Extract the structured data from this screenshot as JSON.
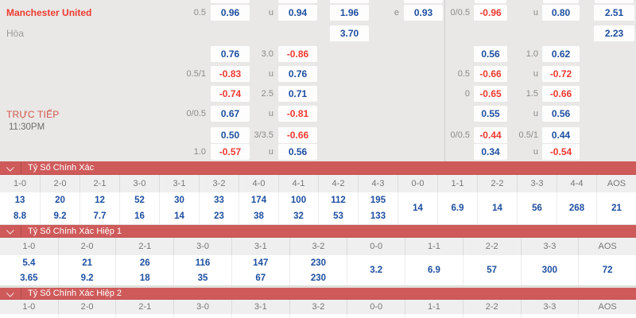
{
  "odds_panel": {
    "live_label": "TRỰC TIẾP",
    "match_time": "11:30PM",
    "rows": [
      {
        "team": "Manchester United",
        "team_style": "home",
        "cells": [
          [
            1,
            "l",
            "0.5"
          ],
          [
            2,
            "b",
            "0.96"
          ],
          [
            3,
            "l",
            "u"
          ],
          [
            4,
            "b",
            "0.94"
          ],
          [
            6,
            "b",
            "1.96"
          ],
          [
            7,
            "l",
            "e"
          ],
          [
            8,
            "b",
            "0.93"
          ],
          [
            10,
            "l",
            "0/0.5"
          ],
          [
            11,
            "b",
            "-0.96"
          ],
          [
            12,
            "l",
            "u"
          ],
          [
            13,
            "b",
            "0.80"
          ],
          [
            15,
            "b",
            "2.51"
          ]
        ]
      },
      {
        "team": "Hòa",
        "team_style": "draw",
        "cells": [
          [
            6,
            "b",
            "3.70"
          ],
          [
            15,
            "b",
            "2.23"
          ]
        ]
      },
      {
        "cells": [
          [
            2,
            "b",
            "0.76"
          ],
          [
            3,
            "l",
            "3.0"
          ],
          [
            4,
            "b",
            "-0.86"
          ],
          [
            11,
            "b",
            "0.56"
          ],
          [
            12,
            "l",
            "1.0"
          ],
          [
            13,
            "b",
            "0.62"
          ]
        ]
      },
      {
        "cells": [
          [
            1,
            "l",
            "0.5/1"
          ],
          [
            2,
            "b",
            "-0.83"
          ],
          [
            3,
            "l",
            "u"
          ],
          [
            4,
            "b",
            "0.76"
          ],
          [
            10,
            "l",
            "0.5"
          ],
          [
            11,
            "b",
            "-0.66"
          ],
          [
            12,
            "l",
            "u"
          ],
          [
            13,
            "b",
            "-0.72"
          ]
        ]
      },
      {
        "cells": [
          [
            2,
            "b",
            "-0.74"
          ],
          [
            3,
            "l",
            "2.5"
          ],
          [
            4,
            "b",
            "0.71"
          ],
          [
            10,
            "l",
            "0"
          ],
          [
            11,
            "b",
            "-0.65"
          ],
          [
            12,
            "l",
            "1.5"
          ],
          [
            13,
            "b",
            "-0.66"
          ]
        ]
      },
      {
        "cells": [
          [
            1,
            "l",
            "0/0.5"
          ],
          [
            2,
            "b",
            "0.67"
          ],
          [
            3,
            "l",
            "u"
          ],
          [
            4,
            "b",
            "-0.81"
          ],
          [
            11,
            "b",
            "0.55"
          ],
          [
            12,
            "l",
            "u"
          ],
          [
            13,
            "b",
            "0.56"
          ]
        ]
      },
      {
        "cells": [
          [
            2,
            "b",
            "0.50"
          ],
          [
            3,
            "l",
            "3/3.5"
          ],
          [
            4,
            "b",
            "-0.66"
          ],
          [
            10,
            "l",
            "0/0.5"
          ],
          [
            11,
            "b",
            "-0.44"
          ],
          [
            12,
            "l",
            "0.5/1"
          ],
          [
            13,
            "b",
            "0.44"
          ]
        ]
      },
      {
        "cells": [
          [
            1,
            "l",
            "1.0"
          ],
          [
            2,
            "b",
            "-0.57"
          ],
          [
            3,
            "l",
            "u"
          ],
          [
            4,
            "b",
            "0.56"
          ],
          [
            11,
            "b",
            "0.34"
          ],
          [
            12,
            "l",
            "u"
          ],
          [
            13,
            "b",
            "-0.54"
          ]
        ]
      }
    ]
  },
  "score_sections": [
    {
      "title": "Tỷ Số Chính Xác",
      "columns": [
        {
          "score": "1-0",
          "values": [
            "13",
            "8.8"
          ]
        },
        {
          "score": "2-0",
          "values": [
            "20",
            "9.2"
          ]
        },
        {
          "score": "2-1",
          "values": [
            "12",
            "7.7"
          ]
        },
        {
          "score": "3-0",
          "values": [
            "52",
            "16"
          ]
        },
        {
          "score": "3-1",
          "values": [
            "30",
            "14"
          ]
        },
        {
          "score": "3-2",
          "values": [
            "33",
            "23"
          ]
        },
        {
          "score": "4-0",
          "values": [
            "174",
            "38"
          ]
        },
        {
          "score": "4-1",
          "values": [
            "100",
            "32"
          ]
        },
        {
          "score": "4-2",
          "values": [
            "112",
            "53"
          ]
        },
        {
          "score": "4-3",
          "values": [
            "195",
            "133"
          ]
        },
        {
          "score": "0-0",
          "values": [
            "14"
          ]
        },
        {
          "score": "1-1",
          "values": [
            "6.9"
          ]
        },
        {
          "score": "2-2",
          "values": [
            "14"
          ]
        },
        {
          "score": "3-3",
          "values": [
            "56"
          ]
        },
        {
          "score": "4-4",
          "values": [
            "268"
          ]
        },
        {
          "score": "AOS",
          "values": [
            "21"
          ]
        }
      ]
    },
    {
      "title": "Tỷ Số Chính Xác Hiệp 1",
      "columns": [
        {
          "score": "1-0",
          "values": [
            "5.4",
            "3.65"
          ]
        },
        {
          "score": "2-0",
          "values": [
            "21",
            "9.2"
          ]
        },
        {
          "score": "2-1",
          "values": [
            "26",
            "18"
          ]
        },
        {
          "score": "3-0",
          "values": [
            "116",
            "35"
          ]
        },
        {
          "score": "3-1",
          "values": [
            "147",
            "67"
          ]
        },
        {
          "score": "3-2",
          "values": [
            "230",
            "230"
          ]
        },
        {
          "score": "0-0",
          "values": [
            "3.2"
          ]
        },
        {
          "score": "1-1",
          "values": [
            "6.9"
          ]
        },
        {
          "score": "2-2",
          "values": [
            "57"
          ]
        },
        {
          "score": "3-3",
          "values": [
            "300"
          ]
        },
        {
          "score": "AOS",
          "values": [
            "72"
          ]
        }
      ]
    },
    {
      "title": "Tỷ Số Chính Xác Hiệp 2",
      "columns": [
        {
          "score": "1-0",
          "values": []
        },
        {
          "score": "2-0",
          "values": []
        },
        {
          "score": "2-1",
          "values": []
        },
        {
          "score": "3-0",
          "values": []
        },
        {
          "score": "3-1",
          "values": []
        },
        {
          "score": "3-2",
          "values": []
        },
        {
          "score": "0-0",
          "values": []
        },
        {
          "score": "1-1",
          "values": []
        },
        {
          "score": "2-2",
          "values": []
        },
        {
          "score": "3-3",
          "values": []
        },
        {
          "score": "AOS",
          "values": []
        }
      ]
    }
  ]
}
